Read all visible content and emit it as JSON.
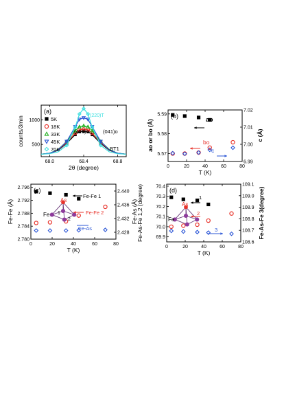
{
  "figure": {
    "colors": {
      "black": "#000000",
      "red": "#e8322a",
      "blue": "#2a55d6",
      "green": "#22b022",
      "cyan": "#3fe0e0",
      "magenta": "#8e3a9c"
    }
  },
  "chart_data": [
    {
      "type": "line",
      "panel_label": "(a)",
      "xlabel": "2θ (degree)",
      "ylabel": "counts/3min",
      "xlim": [
        67.9,
        68.9
      ],
      "ylim": [
        250,
        1300
      ],
      "xticks": [
        "68.0",
        "68.4",
        "68.8"
      ],
      "yticks": [
        "500",
        "1000"
      ],
      "grid": false,
      "legend": "left",
      "annotations": [
        "(401)o",
        "(041)o",
        "(220)T",
        "BT1"
      ],
      "series": [
        {
          "name": "5K",
          "color": "#000000",
          "marker": "square",
          "x": [
            67.9,
            68.0,
            68.1,
            68.2,
            68.3,
            68.35,
            68.4,
            68.45,
            68.5,
            68.6,
            68.7,
            68.8,
            68.9
          ],
          "y": [
            300,
            320,
            380,
            520,
            700,
            760,
            770,
            760,
            700,
            520,
            380,
            320,
            300
          ]
        },
        {
          "name": "18K",
          "color": "#e8322a",
          "marker": "circle-open",
          "x": [
            67.9,
            68.0,
            68.1,
            68.2,
            68.3,
            68.35,
            68.4,
            68.45,
            68.5,
            68.6,
            68.7,
            68.8,
            68.9
          ],
          "y": [
            300,
            320,
            390,
            540,
            730,
            800,
            810,
            800,
            730,
            540,
            390,
            320,
            300
          ]
        },
        {
          "name": "33K",
          "color": "#22b022",
          "marker": "triangle-up",
          "x": [
            67.9,
            68.0,
            68.1,
            68.2,
            68.3,
            68.35,
            68.4,
            68.45,
            68.5,
            68.6,
            68.7,
            68.8,
            68.9
          ],
          "y": [
            300,
            320,
            400,
            560,
            780,
            860,
            880,
            860,
            780,
            560,
            400,
            320,
            300
          ]
        },
        {
          "name": "45K",
          "color": "#2a55d6",
          "marker": "triangle-down",
          "x": [
            67.9,
            68.0,
            68.1,
            68.2,
            68.3,
            68.35,
            68.4,
            68.45,
            68.5,
            68.6,
            68.7,
            68.8,
            68.9
          ],
          "y": [
            300,
            320,
            390,
            560,
            860,
            1010,
            1040,
            1010,
            860,
            560,
            390,
            320,
            300
          ]
        },
        {
          "name": "70K",
          "color": "#3fe0e0",
          "marker": "diamond",
          "x": [
            67.9,
            68.0,
            68.1,
            68.2,
            68.3,
            68.35,
            68.4,
            68.45,
            68.5,
            68.6,
            68.7,
            68.8,
            68.9
          ],
          "y": [
            300,
            310,
            350,
            480,
            850,
            1120,
            1230,
            1120,
            850,
            480,
            350,
            310,
            300
          ]
        }
      ]
    },
    {
      "type": "scatter",
      "panel_label": "(b)",
      "xlabel": "T (K)",
      "ylabel": "ao or bo (Å)",
      "ylabel_right": "c (Å)",
      "xlim": [
        0,
        80
      ],
      "ylim": [
        5.566,
        5.592
      ],
      "ylim_right": [
        6.99,
        7.02
      ],
      "xticks": [
        "0",
        "20",
        "40",
        "60",
        "80"
      ],
      "yticks": [
        "5.57",
        "5.58",
        "5.59"
      ],
      "yticks_right": [
        "6.99",
        "7.00",
        "7.01",
        "7.02"
      ],
      "labels": [
        "ao",
        "bo",
        "c"
      ],
      "series": [
        {
          "name": "ao",
          "color": "#000000",
          "marker": "square",
          "axis": "left",
          "x": [
            5,
            18,
            33,
            45
          ],
          "y": [
            5.5895,
            5.5889,
            5.5882,
            5.587
          ]
        },
        {
          "name": "bo",
          "color": "#e8322a",
          "marker": "circle-open",
          "axis": "left",
          "x": [
            5,
            18,
            33,
            45,
            70
          ],
          "y": [
            5.57,
            5.57,
            5.5705,
            5.573,
            5.5757
          ]
        },
        {
          "name": "c",
          "color": "#2a55d6",
          "marker": "diamond",
          "axis": "right",
          "x": [
            5,
            18,
            33,
            45,
            70
          ],
          "y": [
            6.9948,
            6.9945,
            6.9952,
            6.9968,
            6.998
          ]
        }
      ]
    },
    {
      "type": "scatter",
      "panel_label": "(c)",
      "xlabel": "T (K)",
      "ylabel": "Fe-Fe (Å)",
      "ylabel_right": "Fe-As (Å)",
      "xlim": [
        0,
        80
      ],
      "ylim": [
        2.78,
        2.797
      ],
      "ylim_right": [
        2.426,
        2.442
      ],
      "xticks": [
        "0",
        "20",
        "40",
        "60",
        "80"
      ],
      "yticks": [
        "2.780",
        "2.784",
        "2.788",
        "2.792",
        "2.796"
      ],
      "yticks_right": [
        "2.428",
        "2.432",
        "2.436",
        "2.440"
      ],
      "labels": [
        "Fe-Fe 1",
        "Fe-Fe 2",
        "Fe-As",
        "Fe",
        "As",
        "1",
        "2"
      ],
      "series": [
        {
          "name": "Fe-Fe 1",
          "color": "#000000",
          "marker": "square",
          "axis": "left",
          "x": [
            5,
            18,
            33,
            45
          ],
          "y": [
            2.7947,
            2.7942,
            2.7937,
            2.7925
          ]
        },
        {
          "name": "Fe-Fe 2",
          "color": "#e8322a",
          "marker": "circle-open",
          "axis": "left",
          "x": [
            5,
            18,
            33,
            45,
            70
          ],
          "y": [
            2.785,
            2.7852,
            2.7855,
            2.7873,
            2.79
          ]
        },
        {
          "name": "Fe-As",
          "color": "#2a55d6",
          "marker": "diamond",
          "axis": "right",
          "x": [
            5,
            18,
            33,
            45,
            70
          ],
          "y": [
            2.4285,
            2.4285,
            2.4285,
            2.4286,
            2.4287
          ]
        }
      ]
    },
    {
      "type": "scatter",
      "panel_label": "(d)",
      "xlabel": "T (K)",
      "ylabel": "Fe-As-Fe 1,2 (degree)",
      "ylabel_right": "Fe-As-Fe 3(degree)",
      "xlim": [
        0,
        80
      ],
      "ylim": [
        69.85,
        70.42
      ],
      "ylim_right": [
        108.6,
        109.1
      ],
      "xticks": [
        "0",
        "20",
        "40",
        "60",
        "80"
      ],
      "yticks": [
        "69.9",
        "70.0",
        "70.1",
        "70.2",
        "70.3",
        "70.4"
      ],
      "yticks_right": [
        "108.6",
        "108.7",
        "108.8",
        "108.9",
        "109.0",
        "109.1"
      ],
      "labels": [
        "1",
        "2",
        "3",
        "Fe",
        "As"
      ],
      "series": [
        {
          "name": "1",
          "color": "#000000",
          "marker": "square",
          "axis": "left",
          "x": [
            5,
            18,
            33,
            45
          ],
          "y": [
            70.29,
            70.27,
            70.26,
            70.22
          ]
        },
        {
          "name": "2",
          "color": "#e8322a",
          "marker": "circle-open",
          "axis": "left",
          "x": [
            5,
            18,
            33,
            45,
            70
          ],
          "y": [
            70.0,
            70.01,
            70.02,
            70.06,
            70.13
          ]
        },
        {
          "name": "3",
          "color": "#2a55d6",
          "marker": "diamond",
          "axis": "right",
          "x": [
            5,
            18,
            33,
            45,
            70
          ],
          "y": [
            108.695,
            108.69,
            108.685,
            108.68,
            108.67
          ]
        }
      ]
    }
  ]
}
